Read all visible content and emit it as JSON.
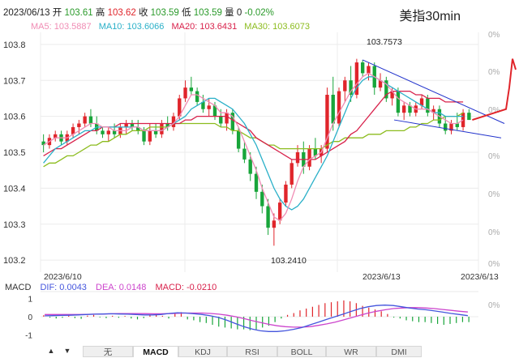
{
  "header": {
    "info": {
      "date": "2023/06/13",
      "open_label": "开",
      "open": "103.61",
      "high_label": "高",
      "high": "103.62",
      "close_label": "收",
      "close": "103.59",
      "low_label": "低",
      "low": "103.59",
      "volume_label": "量",
      "volume": "0",
      "change": "-0.02%"
    },
    "title": "美指30min"
  },
  "ma_legend": {
    "ma5": "MA5: 103.5887",
    "ma10": "MA10: 103.6066",
    "ma20": "MA20: 103.6431",
    "ma30": "MA30: 103.6073"
  },
  "colors": {
    "up": "#e0252b",
    "down": "#18a53a",
    "ma5": "#f08cb4",
    "ma10": "#2ab0c8",
    "ma20": "#d8204a",
    "ma30": "#8cbc1e",
    "trend": "#2233cc",
    "dif": "#4455dd",
    "dea": "#cc44cc"
  },
  "macd_legend": {
    "name": "MACD",
    "dif": "DIF: 0.0043",
    "dea": "DEA: 0.0148",
    "macd": "MACD: -0.0210"
  },
  "tabs": [
    {
      "label": "无",
      "active": false
    },
    {
      "label": "MACD",
      "active": true
    },
    {
      "label": "KDJ",
      "active": false
    },
    {
      "label": "RSI",
      "active": false
    },
    {
      "label": "BOLL",
      "active": false
    },
    {
      "label": "WR",
      "active": false
    },
    {
      "label": "DMI",
      "active": false
    }
  ],
  "chart_data": {
    "type": "candlestick",
    "y_ticks": [
      "103.8",
      "103.7",
      "103.6",
      "103.5",
      "103.4",
      "103.3",
      "103.2"
    ],
    "ylim": [
      103.18,
      103.82
    ],
    "right_ticks": [
      "0%",
      "0%",
      "0%",
      "0%",
      "0%",
      "0%",
      "0%",
      "0%"
    ],
    "x_labels": [
      "2023/6/10",
      "2023/6/13",
      "2023/6/13"
    ],
    "annotations": {
      "high": "103.7573",
      "low": "103.2410"
    },
    "candles": [
      [
        103.53,
        103.55,
        103.5,
        103.52
      ],
      [
        103.52,
        103.55,
        103.51,
        103.54
      ],
      [
        103.54,
        103.56,
        103.53,
        103.55
      ],
      [
        103.55,
        103.56,
        103.52,
        103.53
      ],
      [
        103.53,
        103.56,
        103.52,
        103.55
      ],
      [
        103.55,
        103.58,
        103.54,
        103.57
      ],
      [
        103.57,
        103.59,
        103.55,
        103.58
      ],
      [
        103.58,
        103.61,
        103.57,
        103.6
      ],
      [
        103.6,
        103.62,
        103.57,
        103.58
      ],
      [
        103.58,
        103.6,
        103.55,
        103.56
      ],
      [
        103.56,
        103.57,
        103.54,
        103.55
      ],
      [
        103.55,
        103.57,
        103.53,
        103.56
      ],
      [
        103.56,
        103.58,
        103.54,
        103.55
      ],
      [
        103.55,
        103.58,
        103.54,
        103.57
      ],
      [
        103.57,
        103.59,
        103.55,
        103.58
      ],
      [
        103.58,
        103.59,
        103.56,
        103.57
      ],
      [
        103.57,
        103.59,
        103.55,
        103.56
      ],
      [
        103.56,
        103.57,
        103.52,
        103.53
      ],
      [
        103.53,
        103.58,
        103.52,
        103.56
      ],
      [
        103.56,
        103.58,
        103.54,
        103.55
      ],
      [
        103.55,
        103.59,
        103.54,
        103.58
      ],
      [
        103.58,
        103.6,
        103.56,
        103.57
      ],
      [
        103.57,
        103.61,
        103.56,
        103.6
      ],
      [
        103.6,
        103.66,
        103.59,
        103.65
      ],
      [
        103.65,
        103.7,
        103.64,
        103.68
      ],
      [
        103.68,
        103.71,
        103.66,
        103.67
      ],
      [
        103.67,
        103.68,
        103.63,
        103.64
      ],
      [
        103.64,
        103.66,
        103.61,
        103.62
      ],
      [
        103.62,
        103.65,
        103.6,
        103.63
      ],
      [
        103.63,
        103.64,
        103.59,
        103.6
      ],
      [
        103.6,
        103.62,
        103.57,
        103.58
      ],
      [
        103.58,
        103.62,
        103.56,
        103.61
      ],
      [
        103.61,
        103.62,
        103.55,
        103.56
      ],
      [
        103.56,
        103.57,
        103.5,
        103.51
      ],
      [
        103.51,
        103.53,
        103.47,
        103.48
      ],
      [
        103.48,
        103.5,
        103.42,
        103.44
      ],
      [
        103.44,
        103.46,
        103.37,
        103.39
      ],
      [
        103.39,
        103.41,
        103.33,
        103.35
      ],
      [
        103.35,
        103.37,
        103.27,
        103.29
      ],
      [
        103.29,
        103.33,
        103.24,
        103.31
      ],
      [
        103.31,
        103.37,
        103.3,
        103.36
      ],
      [
        103.36,
        103.42,
        103.35,
        103.41
      ],
      [
        103.41,
        103.48,
        103.4,
        103.47
      ],
      [
        103.47,
        103.52,
        103.46,
        103.5
      ],
      [
        103.5,
        103.53,
        103.44,
        103.46
      ],
      [
        103.46,
        103.52,
        103.45,
        103.51
      ],
      [
        103.51,
        103.54,
        103.48,
        103.49
      ],
      [
        103.49,
        103.52,
        103.47,
        103.51
      ],
      [
        103.51,
        103.68,
        103.5,
        103.66
      ],
      [
        103.66,
        103.71,
        103.56,
        103.58
      ],
      [
        103.58,
        103.68,
        103.57,
        103.67
      ],
      [
        103.67,
        103.71,
        103.64,
        103.7
      ],
      [
        103.7,
        103.74,
        103.64,
        103.66
      ],
      [
        103.66,
        103.76,
        103.65,
        103.75
      ],
      [
        103.75,
        103.757,
        103.71,
        103.72
      ],
      [
        103.72,
        103.75,
        103.7,
        103.74
      ],
      [
        103.74,
        103.75,
        103.66,
        103.68
      ],
      [
        103.68,
        103.72,
        103.67,
        103.7
      ],
      [
        103.7,
        103.71,
        103.64,
        103.65
      ],
      [
        103.65,
        103.68,
        103.63,
        103.67
      ],
      [
        103.67,
        103.68,
        103.6,
        103.61
      ],
      [
        103.61,
        103.64,
        103.59,
        103.63
      ],
      [
        103.63,
        103.64,
        103.6,
        103.61
      ],
      [
        103.61,
        103.64,
        103.6,
        103.63
      ],
      [
        103.63,
        103.66,
        103.62,
        103.65
      ],
      [
        103.65,
        103.66,
        103.6,
        103.61
      ],
      [
        103.61,
        103.63,
        103.59,
        103.62
      ],
      [
        103.62,
        103.63,
        103.57,
        103.58
      ],
      [
        103.58,
        103.6,
        103.55,
        103.56
      ],
      [
        103.56,
        103.59,
        103.55,
        103.58
      ],
      [
        103.58,
        103.61,
        103.56,
        103.57
      ],
      [
        103.57,
        103.62,
        103.56,
        103.61
      ],
      [
        103.61,
        103.62,
        103.59,
        103.59
      ]
    ],
    "ma5": [
      103.52,
      103.53,
      103.54,
      103.54,
      103.54,
      103.55,
      103.56,
      103.57,
      103.58,
      103.58,
      103.57,
      103.57,
      103.56,
      103.56,
      103.56,
      103.57,
      103.57,
      103.56,
      103.56,
      103.56,
      103.56,
      103.57,
      103.58,
      103.6,
      103.63,
      103.66,
      103.66,
      103.65,
      103.64,
      103.63,
      103.61,
      103.61,
      103.6,
      103.57,
      103.53,
      103.49,
      103.45,
      103.4,
      103.36,
      103.32,
      103.31,
      103.33,
      103.37,
      103.42,
      103.46,
      103.48,
      103.49,
      103.5,
      103.54,
      103.58,
      103.61,
      103.64,
      103.67,
      103.69,
      103.71,
      103.72,
      103.71,
      103.7,
      103.69,
      103.67,
      103.65,
      103.64,
      103.63,
      103.62,
      103.62,
      103.62,
      103.61,
      103.6,
      103.59,
      103.58,
      103.58,
      103.59
    ],
    "ma10": [
      103.47,
      103.49,
      103.51,
      103.52,
      103.53,
      103.54,
      103.55,
      103.56,
      103.56,
      103.57,
      103.57,
      103.57,
      103.57,
      103.57,
      103.57,
      103.57,
      103.57,
      103.56,
      103.56,
      103.56,
      103.56,
      103.57,
      103.58,
      103.59,
      103.6,
      103.62,
      103.63,
      103.64,
      103.65,
      103.65,
      103.64,
      103.63,
      103.62,
      103.6,
      103.58,
      103.55,
      103.52,
      103.48,
      103.44,
      103.4,
      103.37,
      103.35,
      103.34,
      103.35,
      103.37,
      103.4,
      103.43,
      103.46,
      103.49,
      103.53,
      103.57,
      103.61,
      103.65,
      103.68,
      103.7,
      103.71,
      103.71,
      103.7,
      103.69,
      103.68,
      103.67,
      103.66,
      103.65,
      103.64,
      103.63,
      103.62,
      103.61,
      103.61,
      103.6,
      103.6,
      103.6,
      103.6
    ],
    "ma20": [
      103.49,
      103.5,
      103.51,
      103.51,
      103.52,
      103.53,
      103.54,
      103.55,
      103.56,
      103.56,
      103.57,
      103.57,
      103.57,
      103.58,
      103.58,
      103.58,
      103.58,
      103.58,
      103.58,
      103.58,
      103.58,
      103.58,
      103.58,
      103.58,
      103.59,
      103.59,
      103.6,
      103.6,
      103.6,
      103.6,
      103.6,
      103.6,
      103.59,
      103.58,
      103.57,
      103.56,
      103.54,
      103.53,
      103.52,
      103.51,
      103.5,
      103.49,
      103.48,
      103.48,
      103.48,
      103.48,
      103.48,
      103.49,
      103.5,
      103.51,
      103.52,
      103.53,
      103.55,
      103.56,
      103.58,
      103.6,
      103.62,
      103.64,
      103.66,
      103.67,
      103.67,
      103.67,
      103.67,
      103.66,
      103.66,
      103.65,
      103.65,
      103.65,
      103.64,
      103.64,
      103.64,
      103.64
    ],
    "ma30": [
      103.46,
      103.47,
      103.47,
      103.48,
      103.49,
      103.49,
      103.5,
      103.51,
      103.52,
      103.52,
      103.53,
      103.53,
      103.54,
      103.55,
      103.55,
      103.56,
      103.56,
      103.56,
      103.57,
      103.57,
      103.57,
      103.57,
      103.58,
      103.58,
      103.58,
      103.58,
      103.58,
      103.58,
      103.58,
      103.58,
      103.57,
      103.57,
      103.56,
      103.56,
      103.55,
      103.54,
      103.54,
      103.53,
      103.52,
      103.52,
      103.51,
      103.51,
      103.51,
      103.51,
      103.51,
      103.51,
      103.51,
      103.51,
      103.52,
      103.53,
      103.53,
      103.54,
      103.54,
      103.54,
      103.54,
      103.55,
      103.55,
      103.55,
      103.56,
      103.56,
      103.56,
      103.56,
      103.57,
      103.57,
      103.58,
      103.58,
      103.59,
      103.59,
      103.6,
      103.6,
      103.6,
      103.61
    ],
    "macd": {
      "ylim": [
        -1.3,
        1.3
      ],
      "ticks": [
        "1",
        "0",
        "-1"
      ],
      "hist": [
        0.08,
        -0.05,
        -0.1,
        -0.06,
        0.05,
        -0.08,
        -0.12,
        0.06,
        0.1,
        -0.04,
        -0.08,
        0.05,
        -0.06,
        0.04,
        -0.1,
        -0.15,
        -0.08,
        0.08,
        0.1,
        0.05,
        -0.1,
        0.2,
        0.25,
        -0.15,
        -0.2,
        -0.3,
        -0.35,
        -0.45,
        -0.55,
        -0.6,
        -0.65,
        -0.7,
        -0.7,
        -0.75,
        -0.7,
        -0.6,
        -0.5,
        -0.3,
        -0.1,
        0.1,
        0.2,
        0.35,
        0.45,
        0.55,
        0.65,
        0.75,
        0.8,
        0.85,
        0.9,
        0.85,
        0.75,
        0.6,
        0.5,
        0.4,
        0.3,
        0.15,
        -0.05,
        -0.1,
        -0.2,
        -0.25,
        -0.3,
        -0.3,
        -0.35,
        -0.4,
        -0.45,
        -0.4,
        -0.35,
        -0.3,
        -0.3
      ],
      "dif": [
        0.05,
        0.06,
        0.07,
        0.08,
        0.1,
        0.12,
        0.14,
        0.15,
        0.16,
        0.15,
        0.14,
        0.12,
        0.1,
        0.1,
        0.12,
        0.18,
        0.22,
        0.2,
        0.16,
        0.12,
        0.05,
        -0.05,
        -0.2,
        -0.38,
        -0.55,
        -0.68,
        -0.78,
        -0.82,
        -0.82,
        -0.78,
        -0.7,
        -0.6,
        -0.45,
        -0.3,
        -0.15,
        0.0,
        0.15,
        0.3,
        0.45,
        0.55,
        0.62,
        0.64,
        0.62,
        0.55,
        0.48,
        0.42,
        0.38,
        0.32,
        0.25,
        0.18,
        0.12,
        0.06
      ],
      "dea": [
        0.12,
        0.12,
        0.12,
        0.12,
        0.12,
        0.13,
        0.14,
        0.15,
        0.16,
        0.17,
        0.17,
        0.17,
        0.17,
        0.16,
        0.16,
        0.17,
        0.19,
        0.2,
        0.2,
        0.2,
        0.18,
        0.14,
        0.08,
        0.0,
        -0.1,
        -0.22,
        -0.32,
        -0.42,
        -0.5,
        -0.55,
        -0.58,
        -0.58,
        -0.55,
        -0.48,
        -0.4,
        -0.3,
        -0.18,
        -0.05,
        0.08,
        0.2,
        0.3,
        0.38,
        0.45,
        0.48,
        0.5,
        0.5,
        0.48,
        0.45,
        0.4,
        0.35,
        0.3,
        0.26
      ]
    }
  }
}
